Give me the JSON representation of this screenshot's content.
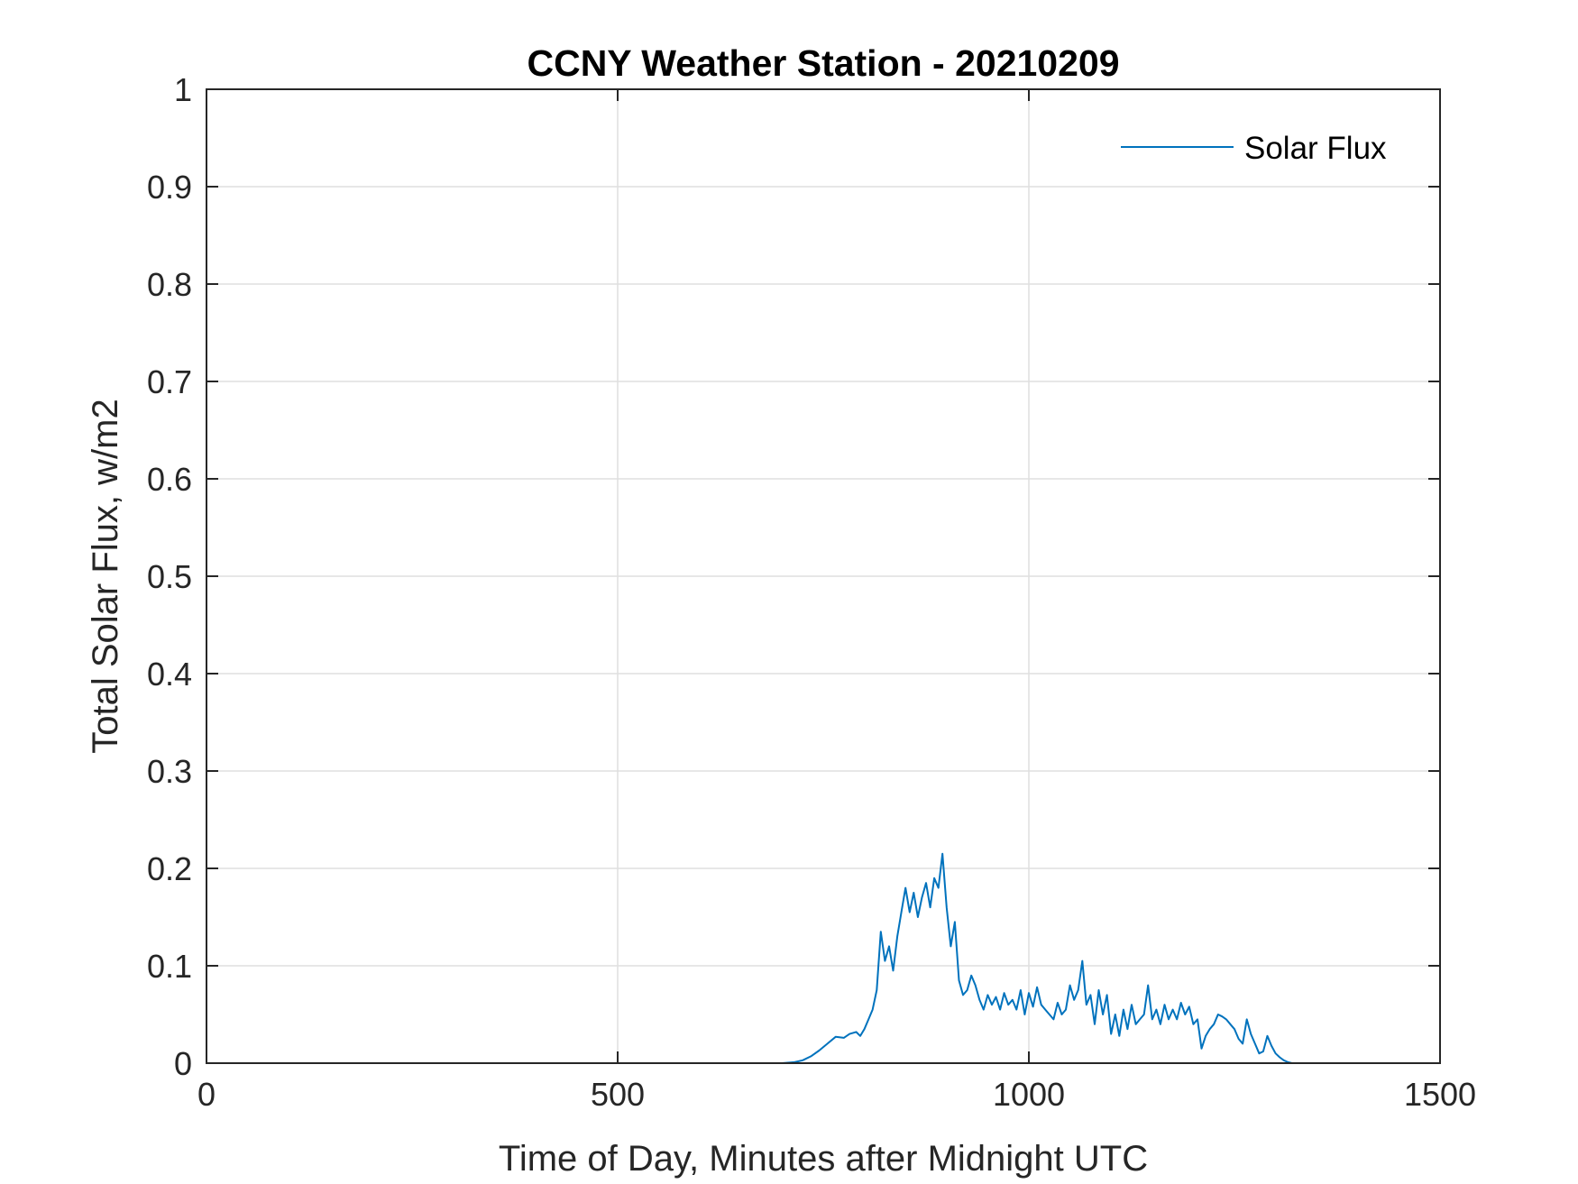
{
  "chart_data": {
    "type": "line",
    "title": "CCNY Weather Station - 20210209",
    "xlabel": "Time of Day, Minutes after Midnight UTC",
    "ylabel": "Total Solar Flux, w/m2",
    "xlim": [
      0,
      1500
    ],
    "ylim": [
      0,
      1
    ],
    "xticks": [
      0,
      500,
      1000,
      1500
    ],
    "xtick_labels": [
      "0",
      "500",
      "1000",
      "1500"
    ],
    "yticks": [
      0,
      0.1,
      0.2,
      0.3,
      0.4,
      0.5,
      0.6,
      0.7,
      0.8,
      0.9,
      1
    ],
    "ytick_labels": [
      "0",
      "0.1",
      "0.2",
      "0.3",
      "0.4",
      "0.5",
      "0.6",
      "0.7",
      "0.8",
      "0.9",
      "1"
    ],
    "grid": true,
    "legend_position": "top-right",
    "series": [
      {
        "name": "Solar Flux",
        "color": "#0072BD",
        "x": [
          0,
          100,
          200,
          300,
          400,
          500,
          600,
          700,
          715,
          725,
          735,
          745,
          755,
          765,
          775,
          782,
          790,
          795,
          800,
          805,
          810,
          815,
          820,
          825,
          830,
          835,
          840,
          845,
          850,
          855,
          860,
          865,
          870,
          875,
          880,
          885,
          890,
          895,
          900,
          905,
          910,
          915,
          920,
          925,
          930,
          935,
          940,
          945,
          950,
          955,
          960,
          965,
          970,
          975,
          980,
          985,
          990,
          995,
          1000,
          1005,
          1010,
          1015,
          1020,
          1025,
          1030,
          1035,
          1040,
          1045,
          1050,
          1055,
          1060,
          1065,
          1070,
          1075,
          1080,
          1085,
          1090,
          1095,
          1100,
          1105,
          1110,
          1115,
          1120,
          1125,
          1130,
          1135,
          1140,
          1145,
          1150,
          1155,
          1160,
          1165,
          1170,
          1175,
          1180,
          1185,
          1190,
          1195,
          1200,
          1205,
          1210,
          1215,
          1220,
          1225,
          1230,
          1235,
          1240,
          1245,
          1250,
          1255,
          1260,
          1265,
          1270,
          1275,
          1280,
          1285,
          1290,
          1295,
          1300,
          1305,
          1310,
          1315,
          1320,
          1325,
          1330,
          1335,
          1340,
          1345,
          1350,
          1355,
          1360,
          1370,
          1380,
          1400,
          1445
        ],
        "y": [
          0,
          0,
          0,
          0,
          0,
          0,
          0,
          0,
          0.001,
          0.003,
          0.007,
          0.013,
          0.02,
          0.027,
          0.026,
          0.03,
          0.032,
          0.028,
          0.035,
          0.045,
          0.055,
          0.075,
          0.135,
          0.105,
          0.12,
          0.095,
          0.13,
          0.155,
          0.18,
          0.155,
          0.175,
          0.15,
          0.17,
          0.185,
          0.16,
          0.19,
          0.18,
          0.215,
          0.16,
          0.12,
          0.145,
          0.085,
          0.07,
          0.075,
          0.09,
          0.08,
          0.065,
          0.055,
          0.07,
          0.06,
          0.068,
          0.055,
          0.072,
          0.06,
          0.065,
          0.055,
          0.075,
          0.05,
          0.072,
          0.058,
          0.078,
          0.06,
          0.055,
          0.05,
          0.045,
          0.062,
          0.05,
          0.055,
          0.08,
          0.065,
          0.075,
          0.105,
          0.06,
          0.07,
          0.04,
          0.075,
          0.05,
          0.07,
          0.03,
          0.05,
          0.028,
          0.055,
          0.035,
          0.06,
          0.04,
          0.045,
          0.05,
          0.08,
          0.045,
          0.055,
          0.04,
          0.06,
          0.045,
          0.055,
          0.045,
          0.062,
          0.05,
          0.058,
          0.04,
          0.045,
          0.015,
          0.028,
          0.035,
          0.04,
          0.05,
          0.048,
          0.045,
          0.04,
          0.035,
          0.025,
          0.02,
          0.045,
          0.03,
          0.02,
          0.01,
          0.012,
          0.028,
          0.018,
          0.01,
          0.006,
          0.003,
          0.001,
          0,
          0,
          0,
          0,
          0,
          0,
          0,
          0,
          0,
          0,
          0,
          0,
          0
        ]
      }
    ]
  }
}
